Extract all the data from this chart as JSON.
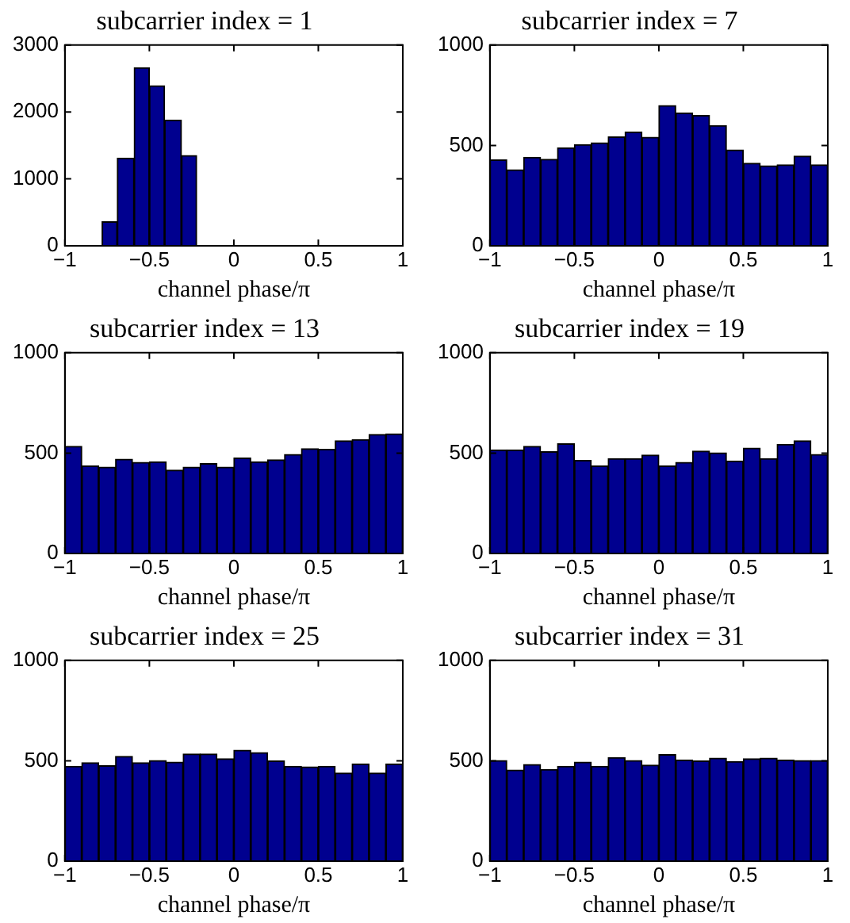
{
  "chart_data": [
    {
      "type": "histogram",
      "title": "subcarrier index = 1",
      "xlabel": "channel phase/π",
      "bins": [
        -0.78,
        -0.69,
        -0.59,
        -0.5,
        -0.41,
        -0.31,
        -0.22
      ],
      "values": [
        360,
        1310,
        2660,
        2390,
        1880,
        1350
      ],
      "color": "#00008f",
      "xlim": [
        -1,
        1
      ],
      "xticks": [
        -1,
        -0.5,
        0,
        0.5,
        1
      ],
      "ylim": [
        0,
        3000
      ],
      "yticks": [
        0,
        1000,
        2000,
        3000
      ],
      "grid": false
    },
    {
      "type": "histogram",
      "title": "subcarrier index = 7",
      "xlabel": "channel phase/π",
      "bins": [
        -1,
        -0.9,
        -0.8,
        -0.7,
        -0.6,
        -0.5,
        -0.4,
        -0.3,
        -0.2,
        -0.1,
        0,
        0.1,
        0.2,
        0.3,
        0.4,
        0.5,
        0.6,
        0.7,
        0.8,
        0.9,
        1
      ],
      "values": [
        428,
        379,
        441,
        431,
        488,
        504,
        513,
        542,
        567,
        540,
        698,
        662,
        649,
        599,
        477,
        411,
        398,
        403,
        447,
        403
      ],
      "color": "#00008f",
      "xlim": [
        -1,
        1
      ],
      "xticks": [
        -1,
        -0.5,
        0,
        0.5,
        1
      ],
      "ylim": [
        0,
        1000
      ],
      "yticks": [
        0,
        500,
        1000
      ],
      "grid": false
    },
    {
      "type": "histogram",
      "title": "subcarrier index = 13",
      "xlabel": "channel phase/π",
      "bins": [
        -1,
        -0.9,
        -0.8,
        -0.7,
        -0.6,
        -0.5,
        -0.4,
        -0.3,
        -0.2,
        -0.1,
        0,
        0.1,
        0.2,
        0.3,
        0.4,
        0.5,
        0.6,
        0.7,
        0.8,
        0.9,
        1
      ],
      "values": [
        534,
        436,
        430,
        469,
        454,
        457,
        415,
        430,
        448,
        430,
        475,
        457,
        466,
        493,
        522,
        519,
        561,
        567,
        593,
        596
      ],
      "color": "#00008f",
      "xlim": [
        -1,
        1
      ],
      "xticks": [
        -1,
        -0.5,
        0,
        0.5,
        1
      ],
      "ylim": [
        0,
        1000
      ],
      "yticks": [
        0,
        500,
        1000
      ],
      "grid": false
    },
    {
      "type": "histogram",
      "title": "subcarrier index = 19",
      "xlabel": "channel phase/π",
      "bins": [
        -1,
        -0.9,
        -0.8,
        -0.7,
        -0.6,
        -0.5,
        -0.4,
        -0.3,
        -0.2,
        -0.1,
        0,
        0.1,
        0.2,
        0.3,
        0.4,
        0.5,
        0.6,
        0.7,
        0.8,
        0.9,
        1
      ],
      "values": [
        516,
        516,
        534,
        507,
        546,
        463,
        436,
        472,
        472,
        490,
        436,
        454,
        510,
        501,
        460,
        525,
        472,
        543,
        561,
        493
      ],
      "color": "#00008f",
      "xlim": [
        -1,
        1
      ],
      "xticks": [
        -1,
        -0.5,
        0,
        0.5,
        1
      ],
      "ylim": [
        0,
        1000
      ],
      "yticks": [
        0,
        500,
        1000
      ],
      "grid": false
    },
    {
      "type": "histogram",
      "title": "subcarrier index = 25",
      "xlabel": "channel phase/π",
      "bins": [
        -1,
        -0.9,
        -0.8,
        -0.7,
        -0.6,
        -0.5,
        -0.4,
        -0.3,
        -0.2,
        -0.1,
        0,
        0.1,
        0.2,
        0.3,
        0.4,
        0.5,
        0.6,
        0.7,
        0.8,
        0.9,
        1
      ],
      "values": [
        472,
        490,
        475,
        522,
        490,
        501,
        493,
        534,
        534,
        510,
        552,
        540,
        499,
        472,
        469,
        472,
        439,
        484,
        439,
        484
      ],
      "color": "#00008f",
      "xlim": [
        -1,
        1
      ],
      "xticks": [
        -1,
        -0.5,
        0,
        0.5,
        1
      ],
      "ylim": [
        0,
        1000
      ],
      "yticks": [
        0,
        500,
        1000
      ],
      "grid": false
    },
    {
      "type": "histogram",
      "title": "subcarrier index = 31",
      "xlabel": "channel phase/π",
      "bins": [
        -1,
        -0.9,
        -0.8,
        -0.7,
        -0.6,
        -0.5,
        -0.4,
        -0.3,
        -0.2,
        -0.1,
        0,
        0.1,
        0.2,
        0.3,
        0.4,
        0.5,
        0.6,
        0.7,
        0.8,
        0.9,
        1
      ],
      "values": [
        501,
        454,
        481,
        457,
        472,
        493,
        472,
        516,
        501,
        478,
        531,
        504,
        499,
        513,
        496,
        510,
        513,
        504,
        501,
        501
      ],
      "color": "#00008f",
      "xlim": [
        -1,
        1
      ],
      "xticks": [
        -1,
        -0.5,
        0,
        0.5,
        1
      ],
      "ylim": [
        0,
        1000
      ],
      "yticks": [
        0,
        500,
        1000
      ],
      "grid": false
    }
  ]
}
